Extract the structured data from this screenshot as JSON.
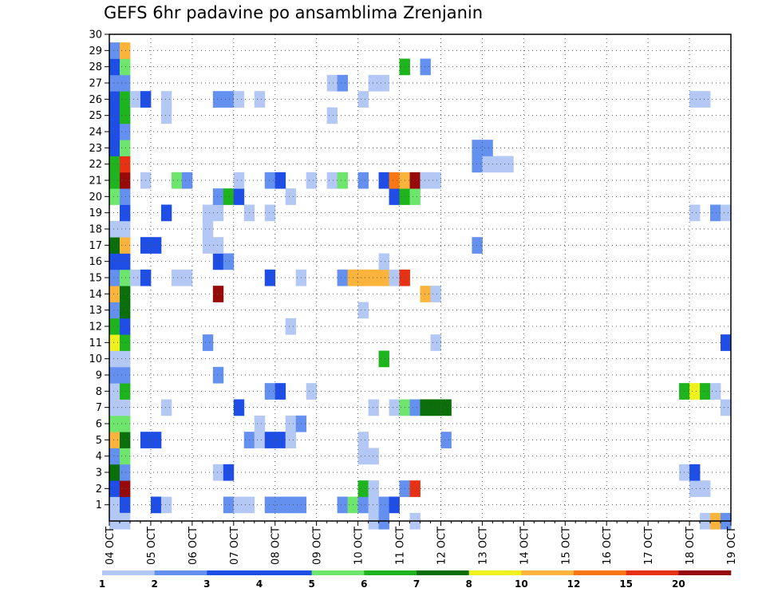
{
  "chart_data": {
    "type": "heatmap",
    "title": "GEFS 6hr padavine po ansamblima Zrenjanin",
    "xlabel": "",
    "ylabel": "",
    "x_ticks": [
      "04 OCT",
      "05 OCT",
      "06 OCT",
      "07 OCT",
      "08 OCT",
      "09 OCT",
      "10 OCT",
      "11 OCT",
      "12 OCT",
      "13 OCT",
      "14 OCT",
      "15 OCT",
      "16 OCT",
      "17 OCT",
      "18 OCT",
      "19 OCT"
    ],
    "y_ticks": [
      1,
      2,
      3,
      4,
      5,
      6,
      7,
      8,
      9,
      10,
      11,
      12,
      13,
      14,
      15,
      16,
      17,
      18,
      19,
      20,
      21,
      22,
      23,
      24,
      25,
      26,
      27,
      28,
      29,
      30
    ],
    "xlim": [
      "04 OCT 00z",
      "19 OCT 00z"
    ],
    "time_step_hours": 6,
    "ylim": [
      0,
      30
    ],
    "grid": true,
    "colorbar": {
      "position": "bottom",
      "levels": [
        "1",
        "2",
        "3",
        "4",
        "5",
        "6",
        "7",
        "8",
        "10",
        "12",
        "15",
        "20"
      ],
      "colors": [
        "#b4c8f5",
        "#6490f0",
        "#1e4ee6",
        "#1e4ee6",
        "#6ee66e",
        "#1eb41e",
        "#0a6e0a",
        "#f0f01e",
        "#fab43c",
        "#fa7814",
        "#e63214",
        "#960a0a"
      ]
    },
    "cells": [
      [
        1,
        1,
        "l1"
      ],
      [
        1,
        2,
        "c3"
      ],
      [
        1,
        5,
        "c3"
      ],
      [
        1,
        6,
        "l1"
      ],
      [
        1,
        12,
        "c2"
      ],
      [
        1,
        13,
        "l1"
      ],
      [
        1,
        14,
        "l1"
      ],
      [
        1,
        16,
        "c2"
      ],
      [
        1,
        17,
        "c2"
      ],
      [
        1,
        18,
        "c2"
      ],
      [
        1,
        19,
        "c2"
      ],
      [
        1,
        23,
        "c2"
      ],
      [
        1,
        24,
        "g5"
      ],
      [
        1,
        25,
        "c2"
      ],
      [
        1,
        26,
        "l1"
      ],
      [
        1,
        27,
        "c2"
      ],
      [
        1,
        28,
        "c3"
      ],
      [
        2,
        1,
        "c3"
      ],
      [
        2,
        2,
        "r20"
      ],
      [
        2,
        25,
        "g6"
      ],
      [
        2,
        26,
        "l1"
      ],
      [
        2,
        29,
        "c2"
      ],
      [
        2,
        30,
        "r15"
      ],
      [
        2,
        57,
        "l1"
      ],
      [
        2,
        58,
        "l1"
      ],
      [
        3,
        1,
        "d7"
      ],
      [
        3,
        2,
        "c2"
      ],
      [
        3,
        11,
        "l1"
      ],
      [
        3,
        12,
        "c3"
      ],
      [
        3,
        56,
        "l1"
      ],
      [
        3,
        57,
        "c3"
      ],
      [
        4,
        1,
        "c2"
      ],
      [
        4,
        2,
        "g5"
      ],
      [
        4,
        25,
        "l1"
      ],
      [
        4,
        26,
        "l1"
      ],
      [
        5,
        1,
        "o10"
      ],
      [
        5,
        2,
        "d7"
      ],
      [
        5,
        4,
        "c3"
      ],
      [
        5,
        5,
        "c3"
      ],
      [
        5,
        14,
        "c2"
      ],
      [
        5,
        15,
        "l1"
      ],
      [
        5,
        16,
        "c3"
      ],
      [
        5,
        17,
        "c3"
      ],
      [
        5,
        18,
        "l1"
      ],
      [
        5,
        25,
        "l1"
      ],
      [
        5,
        33,
        "c2"
      ],
      [
        6,
        1,
        "g5"
      ],
      [
        6,
        2,
        "g5"
      ],
      [
        6,
        15,
        "l1"
      ],
      [
        6,
        18,
        "l1"
      ],
      [
        6,
        19,
        "c2"
      ],
      [
        7,
        1,
        "l1"
      ],
      [
        7,
        2,
        "l1"
      ],
      [
        7,
        6,
        "l1"
      ],
      [
        7,
        13,
        "c3"
      ],
      [
        7,
        26,
        "l1"
      ],
      [
        7,
        28,
        "l1"
      ],
      [
        7,
        29,
        "g5"
      ],
      [
        7,
        30,
        "c2"
      ],
      [
        7,
        31,
        "d7"
      ],
      [
        7,
        32,
        "d7"
      ],
      [
        7,
        33,
        "d7"
      ],
      [
        7,
        60,
        "l1"
      ],
      [
        8,
        1,
        "l1"
      ],
      [
        8,
        2,
        "g6"
      ],
      [
        8,
        16,
        "c2"
      ],
      [
        8,
        17,
        "c3"
      ],
      [
        8,
        20,
        "l1"
      ],
      [
        8,
        56,
        "g6"
      ],
      [
        8,
        57,
        "y8"
      ],
      [
        8,
        58,
        "g6"
      ],
      [
        8,
        59,
        "l1"
      ],
      [
        9,
        1,
        "c2"
      ],
      [
        9,
        2,
        "c2"
      ],
      [
        9,
        11,
        "c2"
      ],
      [
        10,
        1,
        "l1"
      ],
      [
        10,
        2,
        "l1"
      ],
      [
        10,
        27,
        "g6"
      ],
      [
        11,
        1,
        "y8"
      ],
      [
        11,
        2,
        "g6"
      ],
      [
        11,
        10,
        "c2"
      ],
      [
        11,
        32,
        "l1"
      ],
      [
        11,
        60,
        "c3"
      ],
      [
        12,
        1,
        "g6"
      ],
      [
        12,
        2,
        "c3"
      ],
      [
        12,
        18,
        "l1"
      ],
      [
        13,
        1,
        "c2"
      ],
      [
        13,
        2,
        "d7"
      ],
      [
        13,
        25,
        "l1"
      ],
      [
        14,
        1,
        "o10"
      ],
      [
        14,
        2,
        "d7"
      ],
      [
        14,
        11,
        "r20"
      ],
      [
        14,
        31,
        "o10"
      ],
      [
        14,
        32,
        "l1"
      ],
      [
        15,
        1,
        "c2"
      ],
      [
        15,
        2,
        "g5"
      ],
      [
        15,
        3,
        "l1"
      ],
      [
        15,
        4,
        "c3"
      ],
      [
        15,
        7,
        "l1"
      ],
      [
        15,
        8,
        "l1"
      ],
      [
        15,
        16,
        "c3"
      ],
      [
        15,
        19,
        "l1"
      ],
      [
        15,
        23,
        "c2"
      ],
      [
        15,
        24,
        "o10"
      ],
      [
        15,
        25,
        "o10"
      ],
      [
        15,
        26,
        "o10"
      ],
      [
        15,
        27,
        "o10"
      ],
      [
        15,
        28,
        "l1"
      ],
      [
        15,
        29,
        "r15"
      ],
      [
        16,
        1,
        "c3"
      ],
      [
        16,
        2,
        "c3"
      ],
      [
        16,
        11,
        "c3"
      ],
      [
        16,
        12,
        "c2"
      ],
      [
        16,
        27,
        "l1"
      ],
      [
        17,
        1,
        "d7"
      ],
      [
        17,
        2,
        "o10"
      ],
      [
        17,
        4,
        "c3"
      ],
      [
        17,
        5,
        "c3"
      ],
      [
        17,
        10,
        "l1"
      ],
      [
        17,
        11,
        "l1"
      ],
      [
        17,
        36,
        "c2"
      ],
      [
        18,
        1,
        "l1"
      ],
      [
        18,
        2,
        "l1"
      ],
      [
        18,
        10,
        "l1"
      ],
      [
        19,
        2,
        "c3"
      ],
      [
        19,
        6,
        "c3"
      ],
      [
        19,
        10,
        "l1"
      ],
      [
        19,
        11,
        "l1"
      ],
      [
        19,
        14,
        "l1"
      ],
      [
        19,
        16,
        "l1"
      ],
      [
        19,
        57,
        "l1"
      ],
      [
        19,
        59,
        "c2"
      ],
      [
        19,
        60,
        "l1"
      ],
      [
        20,
        1,
        "g5"
      ],
      [
        20,
        2,
        "c2"
      ],
      [
        20,
        11,
        "c2"
      ],
      [
        20,
        12,
        "g6"
      ],
      [
        20,
        13,
        "c3"
      ],
      [
        20,
        18,
        "l1"
      ],
      [
        20,
        28,
        "c3"
      ],
      [
        20,
        29,
        "g6"
      ],
      [
        20,
        30,
        "g5"
      ],
      [
        21,
        1,
        "g6"
      ],
      [
        21,
        2,
        "r20"
      ],
      [
        21,
        4,
        "l1"
      ],
      [
        21,
        7,
        "g5"
      ],
      [
        21,
        8,
        "c2"
      ],
      [
        21,
        13,
        "l1"
      ],
      [
        21,
        16,
        "c2"
      ],
      [
        21,
        17,
        "c3"
      ],
      [
        21,
        20,
        "l1"
      ],
      [
        21,
        22,
        "l1"
      ],
      [
        21,
        23,
        "g5"
      ],
      [
        21,
        25,
        "c2"
      ],
      [
        21,
        27,
        "c3"
      ],
      [
        21,
        28,
        "o12"
      ],
      [
        21,
        29,
        "o10"
      ],
      [
        21,
        30,
        "r20"
      ],
      [
        21,
        31,
        "l1"
      ],
      [
        21,
        32,
        "l1"
      ],
      [
        22,
        1,
        "g6"
      ],
      [
        22,
        2,
        "r15"
      ],
      [
        22,
        36,
        "c2"
      ],
      [
        22,
        37,
        "l1"
      ],
      [
        22,
        38,
        "l1"
      ],
      [
        22,
        39,
        "l1"
      ],
      [
        23,
        1,
        "c3"
      ],
      [
        23,
        2,
        "g5"
      ],
      [
        23,
        36,
        "c2"
      ],
      [
        23,
        37,
        "c2"
      ],
      [
        24,
        1,
        "c3"
      ],
      [
        24,
        2,
        "c2"
      ],
      [
        25,
        1,
        "c3"
      ],
      [
        25,
        2,
        "g6"
      ],
      [
        25,
        6,
        "l1"
      ],
      [
        25,
        22,
        "l1"
      ],
      [
        26,
        1,
        "c3"
      ],
      [
        26,
        2,
        "g6"
      ],
      [
        26,
        3,
        "l1"
      ],
      [
        26,
        4,
        "c3"
      ],
      [
        26,
        6,
        "l1"
      ],
      [
        26,
        11,
        "c2"
      ],
      [
        26,
        12,
        "c2"
      ],
      [
        26,
        13,
        "l1"
      ],
      [
        26,
        15,
        "l1"
      ],
      [
        26,
        25,
        "l1"
      ],
      [
        26,
        57,
        "l1"
      ],
      [
        26,
        58,
        "l1"
      ],
      [
        27,
        1,
        "c2"
      ],
      [
        27,
        2,
        "c2"
      ],
      [
        27,
        22,
        "l1"
      ],
      [
        27,
        23,
        "c2"
      ],
      [
        27,
        26,
        "l1"
      ],
      [
        27,
        27,
        "l1"
      ],
      [
        28,
        1,
        "c3"
      ],
      [
        28,
        2,
        "g5"
      ],
      [
        28,
        29,
        "g6"
      ],
      [
        28,
        31,
        "c2"
      ],
      [
        29,
        1,
        "c2"
      ],
      [
        29,
        2,
        "o10"
      ],
      [
        0,
        1,
        "l1"
      ],
      [
        0,
        2,
        "l1"
      ],
      [
        0,
        26,
        "l1"
      ],
      [
        0,
        27,
        "c2"
      ],
      [
        0,
        30,
        "l1"
      ],
      [
        0,
        58,
        "l1"
      ],
      [
        0,
        59,
        "o10"
      ],
      [
        0,
        60,
        "c2"
      ]
    ]
  }
}
